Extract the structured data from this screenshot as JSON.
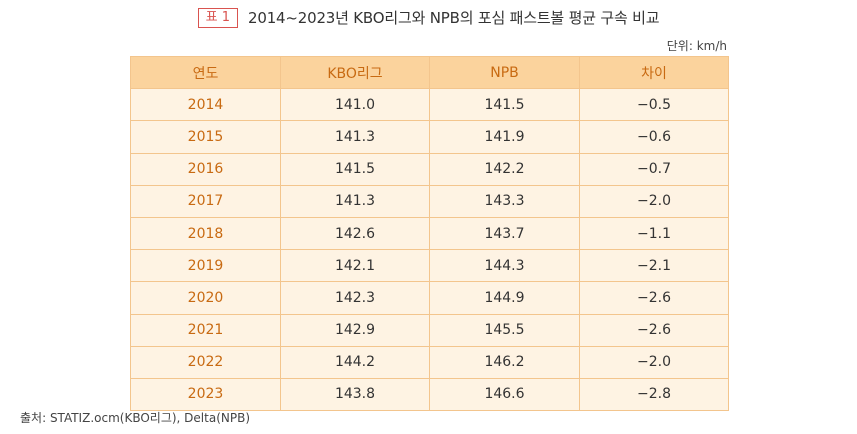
{
  "caption": {
    "badge": "표 1",
    "title": "2014~2023년 KBO리그와 NPB의 포심 패스트볼 평균 구속 비교"
  },
  "unit_note": "단위: km/h",
  "table": {
    "headers": [
      "연도",
      "KBO리그",
      "NPB",
      "차이"
    ],
    "rows": [
      [
        "2014",
        "141.0",
        "141.5",
        "−0.5"
      ],
      [
        "2015",
        "141.3",
        "141.9",
        "−0.6"
      ],
      [
        "2016",
        "141.5",
        "142.2",
        "−0.7"
      ],
      [
        "2017",
        "141.3",
        "143.3",
        "−2.0"
      ],
      [
        "2018",
        "142.6",
        "143.7",
        "−1.1"
      ],
      [
        "2019",
        "142.1",
        "144.3",
        "−2.1"
      ],
      [
        "2020",
        "142.3",
        "144.9",
        "−2.6"
      ],
      [
        "2021",
        "142.9",
        "145.5",
        "−2.6"
      ],
      [
        "2022",
        "144.2",
        "146.2",
        "−2.0"
      ],
      [
        "2023",
        "143.8",
        "146.6",
        "−2.8"
      ]
    ]
  },
  "source": "출처: STATIZ.ocm(KBO리그), Delta(NPB)",
  "colors": {
    "header_bg": "#fbd39d",
    "body_bg": "#fef3e3",
    "accent_text": "#c86a12",
    "badge_red": "#d9534f"
  }
}
